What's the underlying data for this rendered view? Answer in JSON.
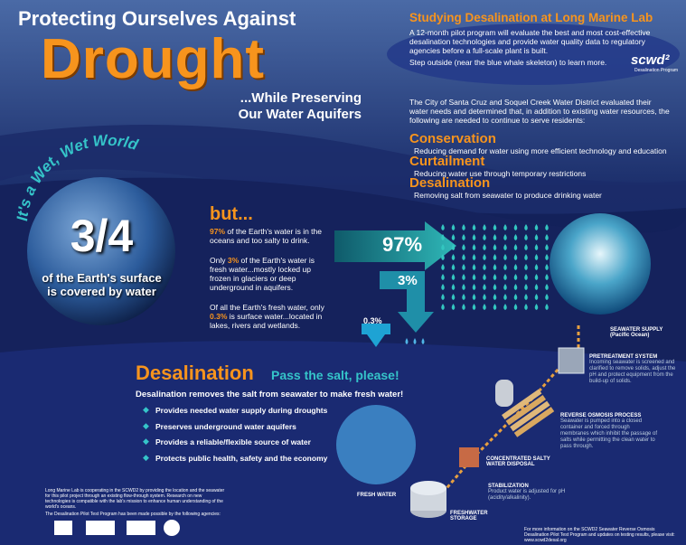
{
  "header": {
    "title_line1": "Protecting Ourselves Against",
    "title_big": "Drought",
    "subtitle_line1": "...While Preserving",
    "subtitle_line2": "Our Water Aquifers"
  },
  "pilot": {
    "heading": "Studying Desalination at Long Marine Lab",
    "text": "A 12-month pilot program will evaluate the best and most cost-effective desalination technologies and provide water quality data to regulatory agencies before a full-scale plant is built.",
    "text2": "Step outside (near the blue whale skeleton) to learn more.",
    "logo": "scwd²",
    "logo_caption": "Desalination Program"
  },
  "needs": {
    "intro": "The City of Santa Cruz and Soquel Creek Water District evaluated their water needs and determined that, in addition to existing water resources, the following are needed to continue to serve residents:",
    "items": [
      {
        "name": "Conservation",
        "text": "Reducing demand for water using more efficient technology and education"
      },
      {
        "name": "Curtailment",
        "text": "Reducing water use through temporary restrictions"
      },
      {
        "name": "Desalination",
        "text": "Removing salt from seawater to produce drinking water"
      }
    ]
  },
  "world": {
    "arc": "It's a Wet, Wet World",
    "fraction": "3/4",
    "caption_line1": "of the Earth's surface",
    "caption_line2": "is covered by water"
  },
  "facts": {
    "heading": "but...",
    "p1": {
      "highlight": "97%",
      "text": " of the Earth's water is in the oceans and too salty to drink."
    },
    "p2": {
      "prefix": "Only ",
      "highlight": "3%",
      "text": " of the Earth's water is fresh water...mostly locked up frozen in glaciers or deep underground in aquifers."
    },
    "p3": {
      "prefix": "Of all the Earth's fresh water, only ",
      "highlight": "0.3%",
      "text": " is surface water...located in lakes, rivers and wetlands."
    },
    "arrows": [
      "97%",
      "3%",
      "0.3%"
    ]
  },
  "desal": {
    "heading": "Desalination",
    "tagline": "Pass the salt, please!",
    "lead": "Desalination removes the salt from seawater to make fresh water!",
    "bullets": [
      "Provides needed water supply during droughts",
      "Preserves underground water aquifers",
      "Provides a reliable/flexible source of water",
      "Protects public health, safety and the economy"
    ]
  },
  "process": {
    "seawater": {
      "title": "SEAWATER SUPPLY",
      "sub": "(Pacific Ocean)"
    },
    "pretreatment": {
      "title": "PRETREATMENT SYSTEM",
      "text": "Incoming seawater is screened and clarified to remove solids, adjust the pH and protect equipment from the build-up of solids."
    },
    "ro": {
      "title": "REVERSE OSMOSIS PROCESS",
      "text": "Seawater is pumped into a closed container and forced through membranes which inhibit the passage of salts while permitting the clean water to pass through."
    },
    "disposal": "CONCENTRATED SALTY WATER DISPOSAL",
    "stabilization": {
      "title": "STABILIZATION",
      "text": "Product water is adjusted for pH (acidity/alkalinity)."
    },
    "storage": "FRESHWATER STORAGE",
    "fresh": "FRESH WATER"
  },
  "footer": {
    "note": "Long Marine Lab is cooperating in the SCWD2 by providing the location and the seawater for this pilot project through an existing flow-through system. Research on new technologies is compatible with the lab's mission to enhance human understanding of the world's oceans.",
    "sponsors": "The Desalination Pilot Test Program has been made possible by the following agencies:",
    "more": "For more information on the SCWD2 Seawater Reverse Osmosis Desalination Pilot Test Program and updates on testing results, please visit: www.scwd2desal.org"
  }
}
